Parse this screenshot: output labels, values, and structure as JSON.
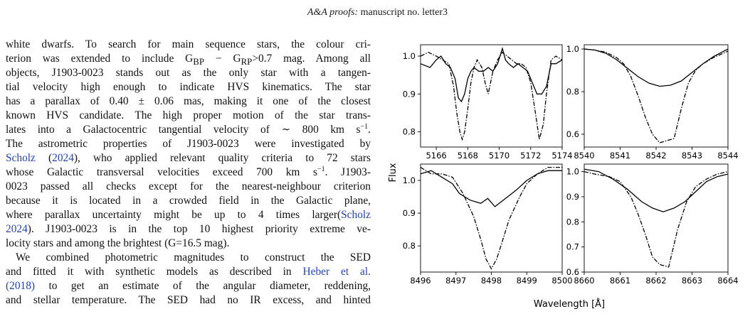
{
  "header": {
    "journal": "A&A proofs:",
    "manuscript": " manuscript no. letter3"
  },
  "body": {
    "lines": [
      {
        "segments": [
          {
            "t": "white dwarfs. To search for main sequence stars, the colour cri-"
          }
        ]
      },
      {
        "segments": [
          {
            "t": "terion was extended to include G"
          },
          {
            "t": "BP",
            "sub": true
          },
          {
            "t": " − G"
          },
          {
            "t": "RP",
            "sub": true
          },
          {
            "t": ">0.7 mag. Among all"
          }
        ]
      },
      {
        "segments": [
          {
            "t": "objects, J1903-0023 stands out as the only star with a tangen-"
          }
        ]
      },
      {
        "segments": [
          {
            "t": "tial velocity high enough to indicate HVS kinematics. The star"
          }
        ]
      },
      {
        "segments": [
          {
            "t": "has a parallax of 0.40 ± 0.06 mas, making it one of the closest"
          }
        ]
      },
      {
        "segments": [
          {
            "t": "known HVS candidate. The high proper motion of the star trans-"
          }
        ]
      },
      {
        "segments": [
          {
            "t": "lates into a Galactocentric tangential velocity of ∼ 800 km s"
          },
          {
            "t": "−1",
            "sup": true
          },
          {
            "t": "."
          }
        ]
      },
      {
        "segments": [
          {
            "t": "The astrometric properties of J1903-0023 were investigated by"
          }
        ]
      },
      {
        "segments": [
          {
            "t": "Scholz",
            "cite": true
          },
          {
            "t": " ("
          },
          {
            "t": "2024",
            "cite": true
          },
          {
            "t": "), who applied relevant quality criteria to 72 stars"
          }
        ]
      },
      {
        "segments": [
          {
            "t": "whose Galactic transversal velocities exceed 700 km s"
          },
          {
            "t": "−1",
            "sup": true
          },
          {
            "t": ". J1903-"
          }
        ]
      },
      {
        "segments": [
          {
            "t": "0023 passed all checks except for the nearest-neighbour criterion"
          }
        ]
      },
      {
        "segments": [
          {
            "t": "because it is located in a crowded field in the Galactic plane,"
          }
        ]
      },
      {
        "segments": [
          {
            "t": "where parallax uncertainty might be up to 4 times larger("
          },
          {
            "t": "Scholz",
            "cite": true
          }
        ]
      },
      {
        "segments": [
          {
            "t": "2024",
            "cite": true
          },
          {
            "t": "). J1903-0023 is in the top 10 highest priority extreme ve-"
          }
        ]
      },
      {
        "segments": [
          {
            "t": "locity stars and among the brightest (G=16.5 mag)."
          }
        ],
        "last": true
      },
      {
        "segments": [
          {
            "t": "We combined photometric magnitudes to construct the SED"
          }
        ],
        "indent": true
      },
      {
        "segments": [
          {
            "t": "and fitted it with synthetic models as described in "
          },
          {
            "t": "Heber et al.",
            "cite": true
          }
        ]
      },
      {
        "segments": [
          {
            "t": "(2018)",
            "cite": true
          },
          {
            "t": " to get an estimate of the angular diameter, reddening,"
          }
        ]
      },
      {
        "segments": [
          {
            "t": "and stellar temperature. The SED had no IR excess, and hinted"
          }
        ]
      }
    ]
  },
  "figure": {
    "ylabel": "Flux",
    "xlabel": "Wavelength [Å]"
  },
  "chart_data": [
    {
      "type": "line",
      "panel": "top-left",
      "xlim": [
        5165,
        5174
      ],
      "ylim": [
        0.76,
        1.03
      ],
      "xticks": [
        5166,
        5168,
        5170,
        5172,
        5174
      ],
      "yticks": [
        0.8,
        0.9,
        1.0
      ],
      "series": [
        {
          "style": "solid",
          "x": [
            5165.0,
            5165.6,
            5166.0,
            5166.3,
            5166.6,
            5166.9,
            5167.2,
            5167.4,
            5167.6,
            5167.8,
            5168.0,
            5168.2,
            5168.4,
            5168.7,
            5169.0,
            5169.3,
            5169.6,
            5169.9,
            5170.2,
            5170.4,
            5170.6,
            5170.9,
            5171.2,
            5171.5,
            5171.8,
            5172.1,
            5172.4,
            5172.7,
            5173.0,
            5173.3,
            5173.6,
            5174.0
          ],
          "y": [
            0.98,
            0.97,
            0.99,
            1.0,
            0.98,
            0.97,
            0.94,
            0.89,
            0.88,
            0.9,
            0.94,
            0.96,
            0.97,
            0.96,
            0.96,
            0.97,
            0.96,
            0.98,
            1.02,
            0.99,
            0.98,
            0.97,
            0.98,
            0.97,
            0.96,
            0.93,
            0.9,
            0.9,
            0.92,
            0.98,
            0.98,
            0.99
          ]
        },
        {
          "style": "dashdot",
          "x": [
            5165.0,
            5165.5,
            5166.0,
            5166.4,
            5166.8,
            5167.1,
            5167.3,
            5167.5,
            5167.65,
            5167.8,
            5168.0,
            5168.2,
            5168.4,
            5168.6,
            5168.9,
            5169.1,
            5169.3,
            5169.6,
            5169.9,
            5170.2,
            5170.5,
            5170.8,
            5171.1,
            5171.4,
            5171.7,
            5172.0,
            5172.3,
            5172.55,
            5172.8,
            5173.0,
            5173.3,
            5173.6,
            5174.0
          ],
          "y": [
            1.0,
            1.01,
            1.0,
            0.99,
            0.98,
            0.92,
            0.85,
            0.8,
            0.78,
            0.8,
            0.86,
            0.93,
            0.97,
            0.99,
            0.97,
            0.93,
            0.9,
            0.96,
            0.99,
            1.01,
            1.0,
            0.99,
            0.98,
            0.98,
            0.97,
            0.93,
            0.85,
            0.78,
            0.82,
            0.9,
            0.99,
            1.0,
            0.99
          ]
        }
      ]
    },
    {
      "type": "line",
      "panel": "top-right",
      "xlim": [
        8540,
        8544
      ],
      "ylim": [
        0.54,
        1.02
      ],
      "xticks": [
        8540,
        8541,
        8542,
        8543,
        8544
      ],
      "yticks": [
        0.6,
        0.8,
        1.0
      ],
      "series": [
        {
          "style": "solid",
          "x": [
            8540.0,
            8540.3,
            8540.6,
            8540.9,
            8541.2,
            8541.5,
            8541.8,
            8542.1,
            8542.4,
            8542.7,
            8543.0,
            8543.3,
            8543.6,
            8544.0
          ],
          "y": [
            1.0,
            0.995,
            0.98,
            0.95,
            0.91,
            0.87,
            0.84,
            0.825,
            0.83,
            0.85,
            0.89,
            0.93,
            0.965,
            1.0
          ]
        },
        {
          "style": "dashdot",
          "x": [
            8540.0,
            8540.3,
            8540.6,
            8540.9,
            8541.1,
            8541.3,
            8541.5,
            8541.7,
            8541.9,
            8542.1,
            8542.3,
            8542.5,
            8542.7,
            8542.9,
            8543.1,
            8543.3,
            8543.6,
            8544.0
          ],
          "y": [
            1.0,
            0.995,
            0.985,
            0.96,
            0.93,
            0.87,
            0.78,
            0.68,
            0.6,
            0.56,
            0.57,
            0.58,
            0.72,
            0.84,
            0.9,
            0.93,
            0.96,
            0.99
          ]
        }
      ]
    },
    {
      "type": "line",
      "panel": "bottom-left",
      "xlim": [
        8496,
        8500
      ],
      "ylim": [
        0.72,
        1.05
      ],
      "xticks": [
        8496,
        8497,
        8498,
        8499,
        8500
      ],
      "yticks": [
        0.8,
        0.9,
        1.0
      ],
      "series": [
        {
          "style": "solid",
          "x": [
            8496.0,
            8496.3,
            8496.6,
            8496.9,
            8497.1,
            8497.4,
            8497.7,
            8497.9,
            8498.1,
            8498.4,
            8498.7,
            8499.0,
            8499.3,
            8499.6,
            8500.0
          ],
          "y": [
            1.02,
            1.03,
            1.01,
            0.99,
            0.96,
            0.94,
            0.93,
            0.945,
            0.92,
            0.945,
            0.97,
            1.0,
            1.02,
            1.03,
            1.03
          ]
        },
        {
          "style": "dashdot",
          "x": [
            8496.0,
            8496.3,
            8496.6,
            8496.9,
            8497.2,
            8497.5,
            8497.7,
            8497.85,
            8498.0,
            8498.15,
            8498.3,
            8498.5,
            8498.8,
            8499.0,
            8499.3,
            8499.6,
            8500.0
          ],
          "y": [
            1.04,
            1.02,
            1.02,
            1.01,
            0.96,
            0.89,
            0.82,
            0.76,
            0.73,
            0.76,
            0.81,
            0.88,
            0.95,
            0.99,
            1.02,
            1.04,
            1.04
          ]
        }
      ]
    },
    {
      "type": "line",
      "panel": "bottom-right",
      "xlim": [
        8660,
        8664
      ],
      "ylim": [
        0.6,
        1.03
      ],
      "xticks": [
        8660,
        8661,
        8662,
        8663,
        8664
      ],
      "yticks": [
        0.6,
        0.7,
        0.8,
        0.9,
        1.0
      ],
      "series": [
        {
          "style": "solid",
          "x": [
            8660.0,
            8660.4,
            8660.8,
            8661.2,
            8661.6,
            8661.9,
            8662.2,
            8662.5,
            8662.8,
            8663.1,
            8663.4,
            8663.7,
            8664.0
          ],
          "y": [
            1.01,
            1.0,
            0.97,
            0.93,
            0.88,
            0.855,
            0.84,
            0.855,
            0.88,
            0.92,
            0.96,
            0.98,
            0.99
          ]
        },
        {
          "style": "dashdot",
          "x": [
            8660.0,
            8660.3,
            8660.7,
            8661.0,
            8661.3,
            8661.5,
            8661.7,
            8661.9,
            8662.1,
            8662.35,
            8662.6,
            8662.85,
            8663.1,
            8663.4,
            8663.7,
            8664.0
          ],
          "y": [
            1.0,
            0.99,
            0.98,
            0.96,
            0.9,
            0.83,
            0.75,
            0.66,
            0.63,
            0.62,
            0.77,
            0.88,
            0.94,
            0.97,
            0.99,
            1.0
          ]
        }
      ]
    }
  ]
}
